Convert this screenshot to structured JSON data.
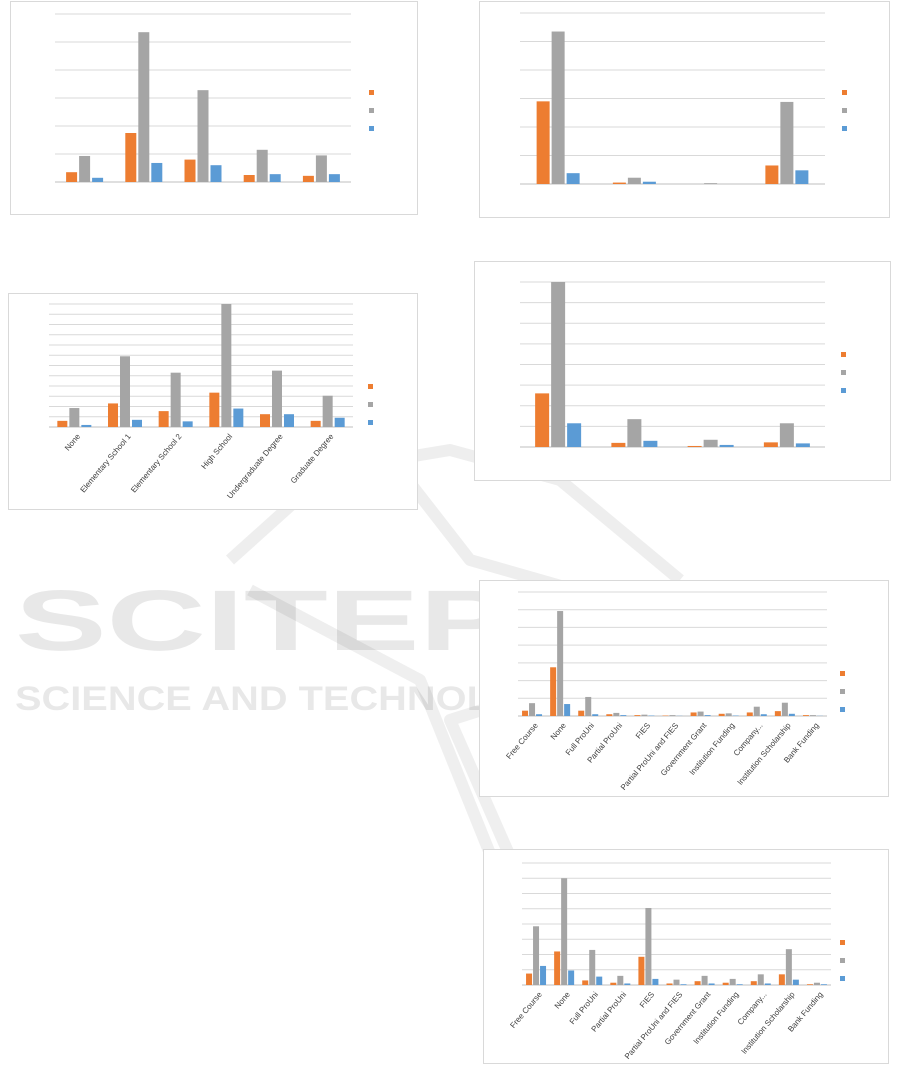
{
  "watermark": {
    "title": "SCITEPRESS",
    "subtitle": "SCIENCE AND TECHNOLOGY PUBLICATIONS"
  },
  "colors": {
    "s1": "#ed7d31",
    "s2": "#a5a5a5",
    "s3": "#5b9bd5",
    "grid": "#d9d9d9",
    "axis": "#bfbfbf",
    "tick": "#404040"
  },
  "chart_data": [
    {
      "type": "bar",
      "title": "",
      "xlabel": "",
      "ylabel": "",
      "categories": [
        "",
        "",
        "",
        "",
        ""
      ],
      "ylim": [
        0,
        6
      ],
      "grid": true,
      "legend": "right",
      "series": [
        {
          "values": [
            0.35,
            1.75,
            0.8,
            0.25,
            0.22
          ]
        },
        {
          "values": [
            0.93,
            5.35,
            3.28,
            1.15,
            0.95
          ]
        },
        {
          "values": [
            0.15,
            0.68,
            0.6,
            0.28,
            0.28
          ]
        }
      ]
    },
    {
      "type": "bar",
      "title": "",
      "xlabel": "",
      "ylabel": "",
      "categories": [
        "",
        "",
        "",
        ""
      ],
      "ylim": [
        0,
        6
      ],
      "grid": true,
      "legend": "right",
      "series": [
        {
          "values": [
            2.9,
            0.05,
            0.0,
            0.65
          ]
        },
        {
          "values": [
            5.35,
            0.22,
            0.03,
            2.88
          ]
        },
        {
          "values": [
            0.38,
            0.08,
            0.0,
            0.48
          ]
        }
      ]
    },
    {
      "type": "bar",
      "title": "",
      "xlabel": "",
      "ylabel": "",
      "categories": [
        "None",
        "Elementary School 1",
        "Elementary School 2",
        "High School",
        "Undergraduate Degree",
        "Graduate Degree"
      ],
      "ylim": [
        0,
        12
      ],
      "grid": true,
      "legend": "right",
      "series": [
        {
          "values": [
            0.6,
            2.3,
            1.55,
            3.35,
            1.25,
            0.6
          ]
        },
        {
          "values": [
            1.85,
            6.9,
            5.3,
            12.1,
            5.5,
            3.05
          ]
        },
        {
          "values": [
            0.2,
            0.7,
            0.55,
            1.8,
            1.25,
            0.9
          ]
        }
      ]
    },
    {
      "type": "bar",
      "title": "",
      "xlabel": "",
      "ylabel": "",
      "categories": [
        "",
        "",
        "",
        ""
      ],
      "ylim": [
        0,
        16
      ],
      "grid": true,
      "legend": "right",
      "series": [
        {
          "values": [
            5.2,
            0.4,
            0.1,
            0.45
          ]
        },
        {
          "values": [
            16.1,
            2.7,
            0.7,
            2.3
          ]
        },
        {
          "values": [
            2.3,
            0.6,
            0.2,
            0.35
          ]
        }
      ]
    },
    {
      "type": "bar",
      "title": "",
      "xlabel": "",
      "ylabel": "",
      "categories": [
        "Free Course",
        "None",
        "Full ProUni",
        "Partial ProUni",
        "FIES",
        "Partial ProUni and FIES",
        "Government Grant",
        "Institution Funding",
        "Company...",
        "Institution Scholarship",
        "Bank Funding"
      ],
      "ylim": [
        0,
        14
      ],
      "grid": true,
      "legend": "right",
      "series": [
        {
          "values": [
            0.6,
            5.5,
            0.6,
            0.2,
            0.1,
            0.05,
            0.4,
            0.25,
            0.4,
            0.55,
            0.1
          ]
        },
        {
          "values": [
            1.45,
            11.85,
            2.15,
            0.35,
            0.15,
            0.1,
            0.5,
            0.3,
            1.05,
            1.5,
            0.1
          ]
        },
        {
          "values": [
            0.2,
            1.35,
            0.2,
            0.1,
            0.05,
            0.02,
            0.1,
            0.05,
            0.2,
            0.25,
            0.02
          ]
        }
      ]
    },
    {
      "type": "bar",
      "title": "",
      "xlabel": "",
      "ylabel": "",
      "categories": [
        "Free Course",
        "None",
        "Full ProUni",
        "Partial ProUni",
        "FIES",
        "Partial ProUni and FIES",
        "Government Grant",
        "Institution Funding",
        "Company...",
        "Institution Scholarship",
        "Bank Funding"
      ],
      "ylim": [
        0,
        8
      ],
      "grid": true,
      "legend": "right",
      "series": [
        {
          "values": [
            0.75,
            2.2,
            0.3,
            0.15,
            1.85,
            0.1,
            0.25,
            0.15,
            0.25,
            0.7,
            0.05
          ]
        },
        {
          "values": [
            3.85,
            7.0,
            2.3,
            0.6,
            5.05,
            0.35,
            0.6,
            0.4,
            0.7,
            2.35,
            0.15
          ]
        },
        {
          "values": [
            1.25,
            0.95,
            0.55,
            0.1,
            0.4,
            0.05,
            0.1,
            0.05,
            0.1,
            0.35,
            0.05
          ]
        }
      ]
    }
  ]
}
